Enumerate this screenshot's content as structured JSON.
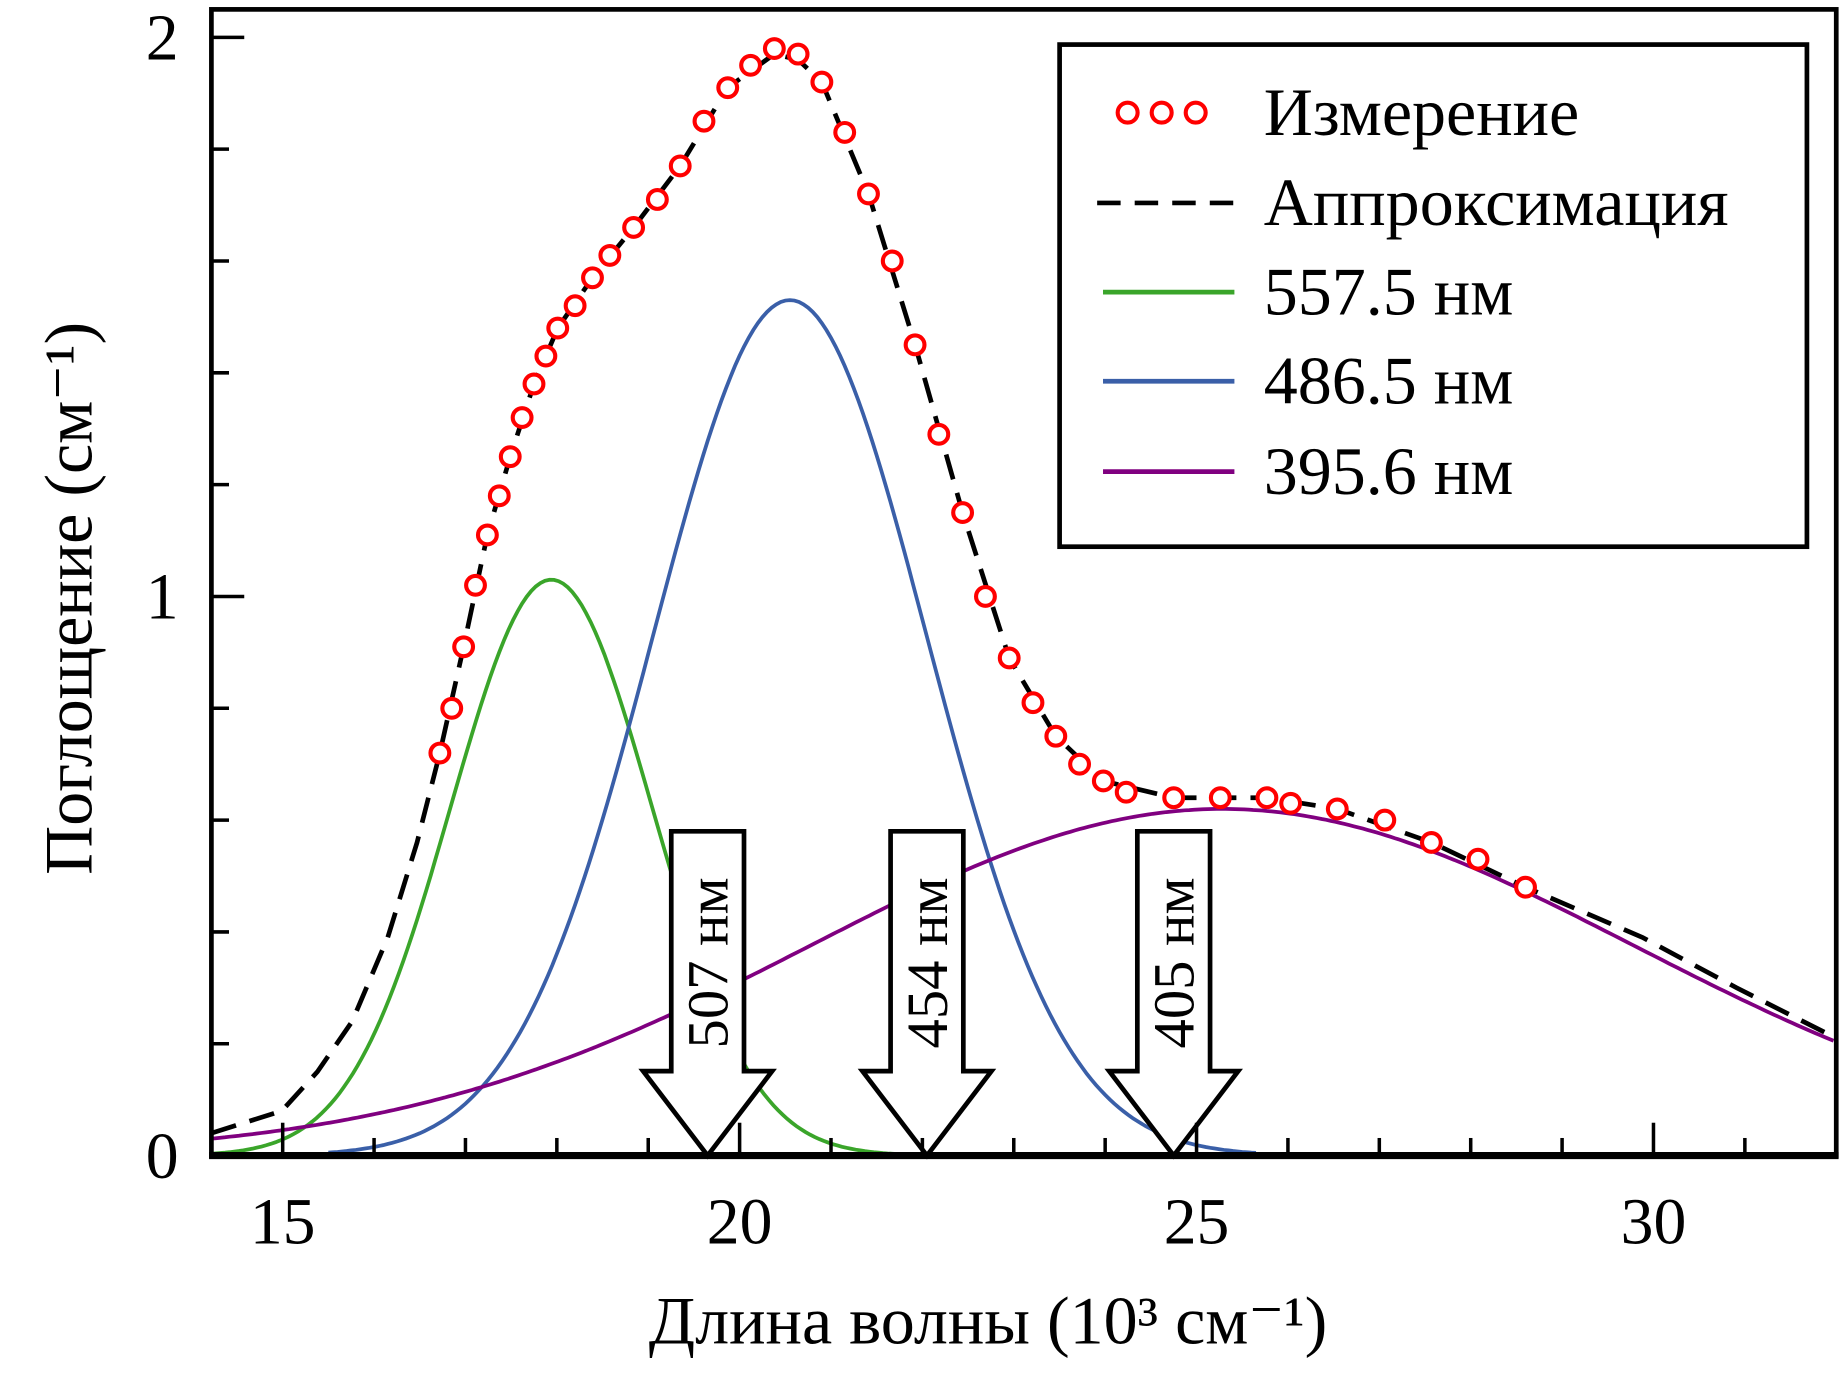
{
  "chart_data": {
    "type": "line",
    "title": "",
    "xlabel": "Длина волны (10³ см⁻¹)",
    "ylabel": "Поглощение (см⁻¹)",
    "xlim": [
      14.22,
      32.0
    ],
    "ylim": [
      0,
      2.05
    ],
    "x_major_ticks": [
      15,
      20,
      25,
      30
    ],
    "x_minor_step": 1,
    "y_major_ticks": [
      0,
      1,
      2
    ],
    "y_minor_step": 0.2,
    "grid": false,
    "legend_position": "top-right",
    "series": [
      {
        "name": "Измерение",
        "kind": "markers",
        "marker": "open-circle",
        "color": "#ff0000",
        "points": [
          [
            16.72,
            0.72
          ],
          [
            16.85,
            0.8
          ],
          [
            16.98,
            0.91
          ],
          [
            17.11,
            1.02
          ],
          [
            17.24,
            1.11
          ],
          [
            17.37,
            1.18
          ],
          [
            17.49,
            1.25
          ],
          [
            17.62,
            1.32
          ],
          [
            17.75,
            1.38
          ],
          [
            17.88,
            1.43
          ],
          [
            18.01,
            1.48
          ],
          [
            18.2,
            1.52
          ],
          [
            18.39,
            1.57
          ],
          [
            18.58,
            1.61
          ],
          [
            18.84,
            1.66
          ],
          [
            19.1,
            1.71
          ],
          [
            19.35,
            1.77
          ],
          [
            19.61,
            1.85
          ],
          [
            19.87,
            1.91
          ],
          [
            20.12,
            1.95
          ],
          [
            20.38,
            1.98
          ],
          [
            20.64,
            1.97
          ],
          [
            20.9,
            1.92
          ],
          [
            21.15,
            1.83
          ],
          [
            21.41,
            1.72
          ],
          [
            21.67,
            1.6
          ],
          [
            21.92,
            1.45
          ],
          [
            22.18,
            1.29
          ],
          [
            22.44,
            1.15
          ],
          [
            22.69,
            1.0
          ],
          [
            22.95,
            0.89
          ],
          [
            23.21,
            0.81
          ],
          [
            23.46,
            0.75
          ],
          [
            23.72,
            0.7
          ],
          [
            23.98,
            0.67
          ],
          [
            24.23,
            0.65
          ],
          [
            24.75,
            0.64
          ],
          [
            25.26,
            0.64
          ],
          [
            25.77,
            0.64
          ],
          [
            26.03,
            0.63
          ],
          [
            26.54,
            0.62
          ],
          [
            27.06,
            0.6
          ],
          [
            27.57,
            0.56
          ],
          [
            28.08,
            0.53
          ],
          [
            28.6,
            0.48
          ]
        ]
      },
      {
        "name": "Аппроксимация",
        "kind": "dashed-line",
        "color": "#000000",
        "points": [
          [
            14.22,
            0.04
          ],
          [
            14.99,
            0.08
          ],
          [
            15.38,
            0.15
          ],
          [
            15.76,
            0.24
          ],
          [
            16.15,
            0.39
          ],
          [
            16.47,
            0.56
          ],
          [
            16.72,
            0.72
          ],
          [
            16.98,
            0.91
          ],
          [
            17.24,
            1.11
          ],
          [
            17.49,
            1.25
          ],
          [
            17.75,
            1.38
          ],
          [
            18.01,
            1.48
          ],
          [
            18.39,
            1.57
          ],
          [
            18.84,
            1.66
          ],
          [
            19.35,
            1.77
          ],
          [
            19.87,
            1.91
          ],
          [
            20.38,
            1.97
          ],
          [
            20.64,
            1.96
          ],
          [
            20.9,
            1.92
          ],
          [
            21.41,
            1.72
          ],
          [
            21.92,
            1.45
          ],
          [
            22.44,
            1.15
          ],
          [
            22.95,
            0.89
          ],
          [
            23.46,
            0.75
          ],
          [
            23.98,
            0.67
          ],
          [
            24.75,
            0.64
          ],
          [
            25.77,
            0.64
          ],
          [
            26.54,
            0.62
          ],
          [
            27.57,
            0.56
          ],
          [
            28.6,
            0.48
          ],
          [
            29.88,
            0.39
          ],
          [
            30.91,
            0.3
          ],
          [
            32.0,
            0.21
          ]
        ]
      },
      {
        "name": "557.5 нм",
        "kind": "gaussian",
        "color": "#3aa52a",
        "center": 17.94,
        "amplitude": 1.03,
        "sigma": 1.1,
        "x_range": [
          14.22,
          22.2
        ]
      },
      {
        "name": "486.5 нм",
        "kind": "gaussian",
        "color": "#3a5fa8",
        "center": 20.55,
        "amplitude": 1.53,
        "sigma": 1.5,
        "x_range": [
          15.5,
          25.65
        ]
      },
      {
        "name": "395.6 нм",
        "kind": "gaussian",
        "color": "#800080",
        "center": 25.28,
        "amplitude": 0.62,
        "sigma": 4.5,
        "x_range": [
          14.22,
          32.0
        ]
      }
    ],
    "annotations": [
      {
        "type": "down-arrow",
        "label": "507 нм",
        "x": 19.65,
        "y_top": 0.58
      },
      {
        "type": "down-arrow",
        "label": "454 нм",
        "x": 22.05,
        "y_top": 0.58
      },
      {
        "type": "down-arrow",
        "label": "405 нм",
        "x": 24.75,
        "y_top": 0.58
      }
    ]
  }
}
